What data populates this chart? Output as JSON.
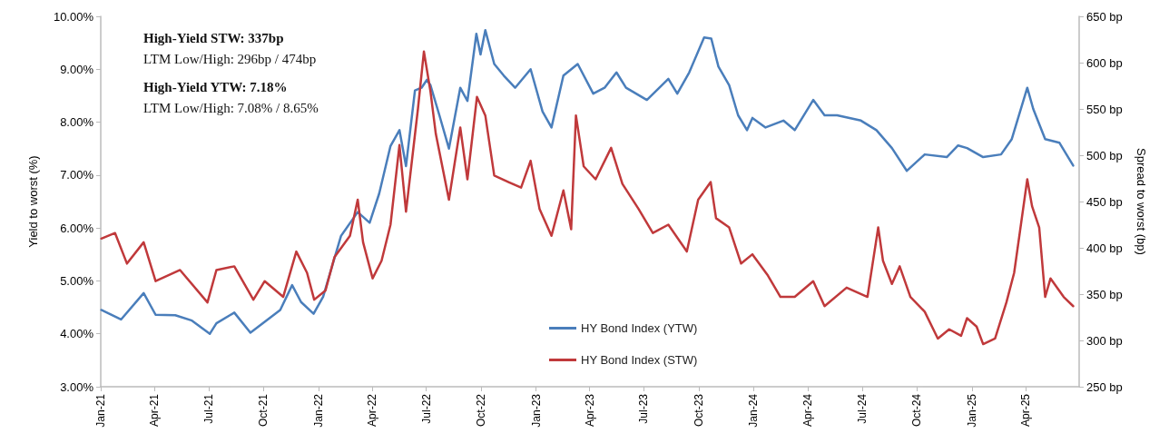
{
  "chart_data": {
    "type": "line",
    "ylabel": "Yield to worst (%)",
    "y2label": "Spread to worst (bp)",
    "annotations": [
      "High-Yield STW: 337bp",
      "LTM Low/High: 296bp / 474bp",
      "High-Yield YTW: 7.18%",
      "LTM Low/High: 7.08% / 8.65%"
    ],
    "xlim": [
      "2021-01-01",
      "2025-06-30"
    ],
    "xticks": [
      {
        "value": "2021-01-01",
        "label": "Jan-21"
      },
      {
        "value": "2021-04-01",
        "label": "Apr-21"
      },
      {
        "value": "2021-07-01",
        "label": "Jul-21"
      },
      {
        "value": "2021-10-01",
        "label": "Oct-21"
      },
      {
        "value": "2022-01-01",
        "label": "Jan-22"
      },
      {
        "value": "2022-04-01",
        "label": "Apr-22"
      },
      {
        "value": "2022-07-01",
        "label": "Jul-22"
      },
      {
        "value": "2022-10-01",
        "label": "Oct-22"
      },
      {
        "value": "2023-01-01",
        "label": "Jan-23"
      },
      {
        "value": "2023-04-01",
        "label": "Apr-23"
      },
      {
        "value": "2023-07-01",
        "label": "Jul-23"
      },
      {
        "value": "2023-10-01",
        "label": "Oct-23"
      },
      {
        "value": "2024-01-01",
        "label": "Jan-24"
      },
      {
        "value": "2024-04-01",
        "label": "Apr-24"
      },
      {
        "value": "2024-07-01",
        "label": "Jul-24"
      },
      {
        "value": "2024-10-01",
        "label": "Oct-24"
      },
      {
        "value": "2025-01-01",
        "label": "Jan-25"
      },
      {
        "value": "2025-04-01",
        "label": "Apr-25"
      }
    ],
    "ylim": [
      3,
      10
    ],
    "yticks": [
      {
        "value": 3,
        "label": "3.00%"
      },
      {
        "value": 4,
        "label": "4.00%"
      },
      {
        "value": 5,
        "label": "5.00%"
      },
      {
        "value": 6,
        "label": "6.00%"
      },
      {
        "value": 7,
        "label": "7.00%"
      },
      {
        "value": 8,
        "label": "8.00%"
      },
      {
        "value": 9,
        "label": "9.00%"
      },
      {
        "value": 10,
        "label": "10.00%"
      }
    ],
    "y2lim": [
      250,
      650
    ],
    "y2ticks": [
      {
        "value": 250,
        "label": "250 bp"
      },
      {
        "value": 300,
        "label": "300 bp"
      },
      {
        "value": 350,
        "label": "350 bp"
      },
      {
        "value": 400,
        "label": "400 bp"
      },
      {
        "value": 450,
        "label": "450 bp"
      },
      {
        "value": 500,
        "label": "500 bp"
      },
      {
        "value": 550,
        "label": "550 bp"
      },
      {
        "value": 600,
        "label": "600 bp"
      },
      {
        "value": 650,
        "label": "650 bp"
      }
    ],
    "grid": false,
    "legend": "bottom",
    "marker": "none",
    "line_style": "solid",
    "series": [
      {
        "name": "HY Bond Index (YTW)",
        "color": "#4a7ebb",
        "x": [
          "2021-01-02",
          "2021-02-04",
          "2021-03-14",
          "2021-04-03",
          "2021-05-06",
          "2021-06-03",
          "2021-07-03",
          "2021-07-14",
          "2021-08-13",
          "2021-09-09",
          "2021-09-30",
          "2021-10-29",
          "2021-11-18",
          "2021-12-03",
          "2021-12-24",
          "2022-01-09",
          "2022-02-08",
          "2022-03-08",
          "2022-03-28",
          "2022-04-13",
          "2022-05-02",
          "2022-05-17",
          "2022-05-28",
          "2022-06-12",
          "2022-06-23",
          "2022-07-02",
          "2022-07-08",
          "2022-07-23",
          "2022-08-08",
          "2022-08-27",
          "2022-09-08",
          "2022-09-23",
          "2022-09-30",
          "2022-10-08",
          "2022-10-23",
          "2022-11-08",
          "2022-11-27",
          "2022-12-23",
          "2023-01-12",
          "2023-01-27",
          "2023-02-16",
          "2023-03-12",
          "2023-04-07",
          "2023-04-26",
          "2023-05-16",
          "2023-06-01",
          "2023-07-06",
          "2023-08-11",
          "2023-08-26",
          "2023-09-15",
          "2023-10-10",
          "2023-10-22",
          "2023-11-03",
          "2023-11-21",
          "2023-12-06",
          "2023-12-21",
          "2023-12-30",
          "2024-01-21",
          "2024-02-20",
          "2024-03-10",
          "2024-04-10",
          "2024-04-29",
          "2024-05-20",
          "2024-06-29",
          "2024-07-25",
          "2024-08-20",
          "2024-09-14",
          "2024-10-14",
          "2024-11-20",
          "2024-12-09",
          "2024-12-24",
          "2025-01-20",
          "2025-02-19",
          "2025-03-09",
          "2025-04-04",
          "2025-04-14",
          "2025-05-04",
          "2025-05-28",
          "2025-06-20"
        ],
        "values": [
          4.45,
          4.27,
          4.77,
          4.36,
          4.35,
          4.25,
          4.0,
          4.2,
          4.4,
          4.02,
          4.2,
          4.45,
          4.92,
          4.6,
          4.38,
          4.7,
          5.85,
          6.3,
          6.1,
          6.65,
          7.55,
          7.85,
          7.17,
          8.6,
          8.65,
          8.8,
          8.7,
          8.13,
          7.5,
          8.65,
          8.4,
          9.67,
          9.28,
          9.74,
          9.1,
          8.88,
          8.65,
          9.0,
          8.2,
          7.9,
          8.88,
          9.1,
          8.54,
          8.65,
          8.94,
          8.65,
          8.42,
          8.82,
          8.54,
          8.94,
          9.6,
          9.58,
          9.05,
          8.7,
          8.13,
          7.85,
          8.08,
          7.9,
          8.03,
          7.85,
          8.42,
          8.13,
          8.13,
          8.03,
          7.85,
          7.51,
          7.08,
          7.39,
          7.34,
          7.56,
          7.51,
          7.34,
          7.39,
          7.68,
          8.65,
          8.25,
          7.68,
          7.61,
          7.18
        ]
      },
      {
        "name": "HY Bond Index (STW)",
        "color": "#c0393b",
        "axis": "y2",
        "x": [
          "2021-01-02",
          "2021-01-25",
          "2021-02-14",
          "2021-03-14",
          "2021-04-03",
          "2021-05-14",
          "2021-06-29",
          "2021-07-14",
          "2021-08-13",
          "2021-09-14",
          "2021-10-03",
          "2021-11-03",
          "2021-11-25",
          "2021-12-13",
          "2021-12-25",
          "2022-01-13",
          "2022-01-28",
          "2022-02-23",
          "2022-03-08",
          "2022-03-17",
          "2022-04-02",
          "2022-04-17",
          "2022-05-02",
          "2022-05-17",
          "2022-05-28",
          "2022-06-17",
          "2022-06-27",
          "2022-07-08",
          "2022-07-17",
          "2022-08-08",
          "2022-08-27",
          "2022-09-08",
          "2022-09-24",
          "2022-10-08",
          "2022-10-23",
          "2022-11-16",
          "2022-12-07",
          "2022-12-23",
          "2023-01-07",
          "2023-01-27",
          "2023-02-16",
          "2023-03-01",
          "2023-03-09",
          "2023-03-22",
          "2023-04-11",
          "2023-05-07",
          "2023-05-26",
          "2023-06-22",
          "2023-07-16",
          "2023-08-11",
          "2023-09-11",
          "2023-09-30",
          "2023-10-21",
          "2023-10-30",
          "2023-11-21",
          "2023-12-11",
          "2023-12-30",
          "2024-01-25",
          "2024-02-15",
          "2024-03-10",
          "2024-04-10",
          "2024-04-29",
          "2024-06-05",
          "2024-07-10",
          "2024-07-28",
          "2024-08-05",
          "2024-08-20",
          "2024-09-02",
          "2024-09-20",
          "2024-10-14",
          "2024-11-05",
          "2024-11-24",
          "2024-12-14",
          "2024-12-24",
          "2025-01-09",
          "2025-01-20",
          "2025-02-09",
          "2025-02-28",
          "2025-03-13",
          "2025-04-04",
          "2025-04-12",
          "2025-04-24",
          "2025-05-04",
          "2025-05-13",
          "2025-06-04",
          "2025-06-20"
        ],
        "values": [
          410,
          416,
          383,
          406,
          364,
          376,
          341,
          376,
          380,
          344,
          364,
          347,
          396,
          373,
          344,
          354,
          390,
          413,
          452,
          406,
          367,
          386,
          425,
          511,
          439,
          550,
          612,
          569,
          523,
          452,
          530,
          474,
          563,
          543,
          478,
          471,
          465,
          494,
          442,
          413,
          462,
          420,
          543,
          488,
          474,
          508,
          469,
          442,
          416,
          425,
          396,
          452,
          471,
          432,
          422,
          383,
          393,
          370,
          347,
          347,
          364,
          337,
          357,
          347,
          422,
          386,
          361,
          380,
          347,
          331,
          302,
          312,
          305,
          324,
          315,
          296,
          302,
          341,
          373,
          474,
          445,
          422,
          347,
          367,
          347,
          337
        ]
      }
    ]
  }
}
